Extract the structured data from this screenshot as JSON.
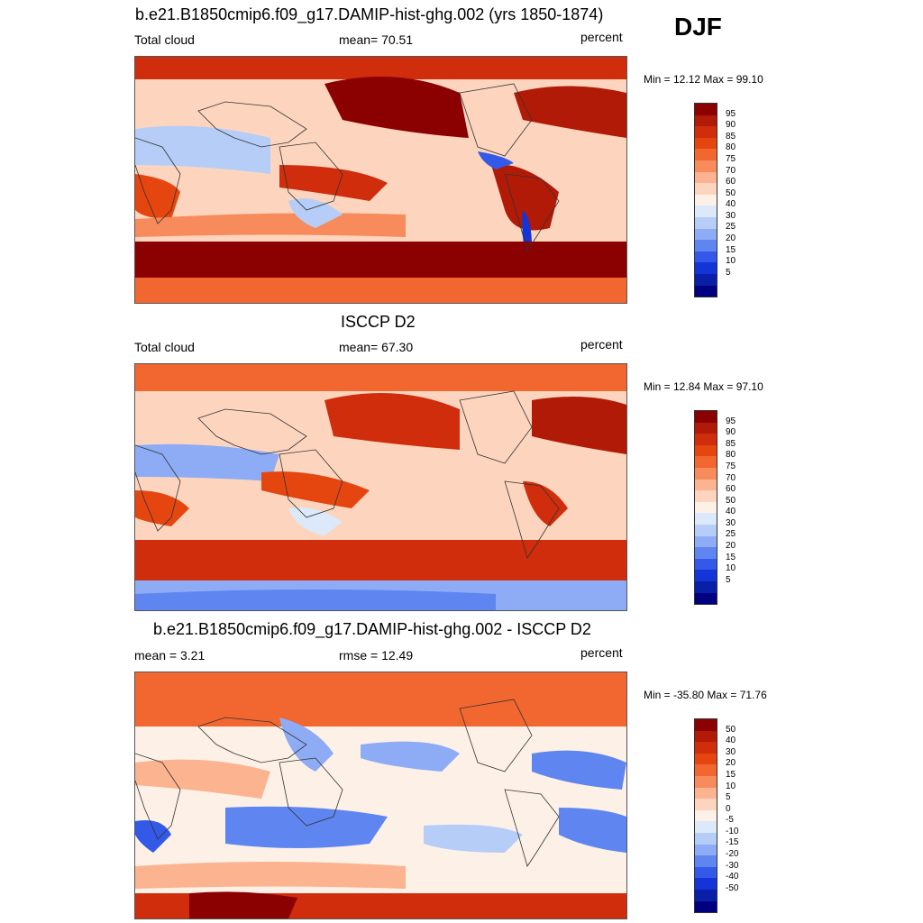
{
  "season": "DJF",
  "panels": [
    {
      "title": "b.e21.B1850cmip6.f09_g17.DAMIP-hist-ghg.002 (yrs 1850-1874)",
      "left_label": "Total cloud",
      "center_label": "mean=  70.51",
      "right_label": "percent",
      "minmax": "Min =  12.12 Max =  99.10",
      "colorbar_labels": [
        "95",
        "90",
        "85",
        "80",
        "75",
        "70",
        "60",
        "50",
        "40",
        "30",
        "25",
        "20",
        "15",
        "10",
        "5"
      ]
    },
    {
      "title": "ISCCP D2",
      "left_label": "Total cloud",
      "center_label": "mean=  67.30",
      "right_label": "percent",
      "minmax": "Min =  12.84 Max =  97.10",
      "colorbar_labels": [
        "95",
        "90",
        "85",
        "80",
        "75",
        "70",
        "60",
        "50",
        "40",
        "30",
        "25",
        "20",
        "15",
        "10",
        "5"
      ]
    },
    {
      "title": "b.e21.B1850cmip6.f09_g17.DAMIP-hist-ghg.002 - ISCCP D2",
      "left_label": "mean =   3.21",
      "center_label": "rmse =  12.49",
      "right_label": "percent",
      "minmax": "Min = -35.80 Max =  71.76",
      "colorbar_labels": [
        "50",
        "40",
        "30",
        "20",
        "15",
        "10",
        "5",
        "0",
        "-5",
        "-10",
        "-15",
        "-20",
        "-30",
        "-40",
        "-50"
      ]
    }
  ],
  "colors": {
    "palette": [
      "#8b0000",
      "#b11a06",
      "#cf2d0c",
      "#e5450f",
      "#f26630",
      "#f88b5c",
      "#fcb38f",
      "#fdd5bf",
      "#fdf1e7",
      "#dbe9fb",
      "#b6cdf8",
      "#8dacf5",
      "#5f86f0",
      "#3259e8",
      "#1334d6",
      "#0a1fa8",
      "#000080"
    ],
    "map_background": "#fdd5bf",
    "coastline": "#333333"
  }
}
